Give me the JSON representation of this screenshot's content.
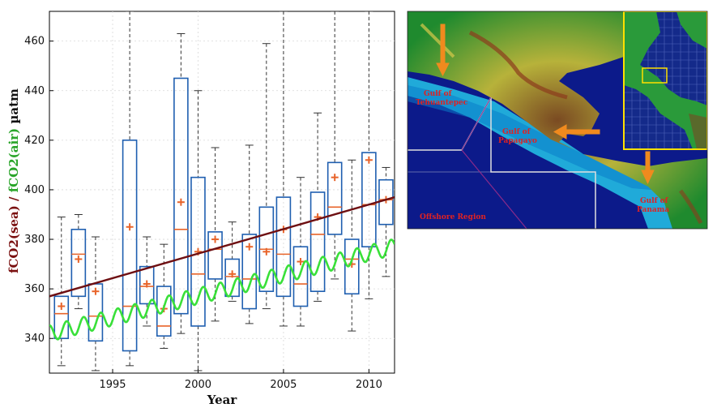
{
  "chart_data": {
    "type": "box",
    "xlabel": "Year",
    "ylabel": {
      "sea_part": "fCO2(sea)",
      "separator": "/",
      "air_part": "fCO2(air)",
      "unit": "µatm"
    },
    "xlim": [
      1991.3,
      2011.5
    ],
    "ylim": [
      326,
      472
    ],
    "xticks": [
      1995,
      2000,
      2005,
      2010
    ],
    "yticks": [
      340,
      360,
      380,
      400,
      420,
      440,
      460
    ],
    "grid": true,
    "box_color": "#1f5fb0",
    "median_color": "#e8642a",
    "mean_marker": "+",
    "boxes": [
      {
        "year": 1992,
        "low": 329,
        "q1": 340,
        "median": 350,
        "q3": 357,
        "high": 389,
        "mean": 353
      },
      {
        "year": 1993,
        "low": 352,
        "q1": 357,
        "median": 374,
        "q3": 384,
        "high": 390,
        "mean": 372
      },
      {
        "year": 1994,
        "low": 327,
        "q1": 339,
        "median": 349,
        "q3": 362,
        "high": 381,
        "mean": 359
      },
      {
        "year": 1996,
        "low": 329,
        "q1": 335,
        "median": 353,
        "q3": 420,
        "high": 472,
        "mean": 385
      },
      {
        "year": 1997,
        "low": 345,
        "q1": 354,
        "median": 361,
        "q3": 369,
        "high": 381,
        "mean": 362
      },
      {
        "year": 1998,
        "low": 336,
        "q1": 341,
        "median": 345,
        "q3": 361,
        "high": 378,
        "mean": 352
      },
      {
        "year": 1999,
        "low": 342,
        "q1": 350,
        "median": 384,
        "q3": 445,
        "high": 463,
        "mean": 395
      },
      {
        "year": 2000,
        "low": 327,
        "q1": 345,
        "median": 366,
        "q3": 405,
        "high": 440,
        "mean": 375
      },
      {
        "year": 2001,
        "low": 347,
        "q1": 364,
        "median": 376,
        "q3": 383,
        "high": 417,
        "mean": 380
      },
      {
        "year": 2002,
        "low": 355,
        "q1": 357,
        "median": 365,
        "q3": 372,
        "high": 387,
        "mean": 366
      },
      {
        "year": 2003,
        "low": 346,
        "q1": 352,
        "median": 364,
        "q3": 382,
        "high": 418,
        "mean": 377
      },
      {
        "year": 2004,
        "low": 352,
        "q1": 359,
        "median": 376,
        "q3": 393,
        "high": 459,
        "mean": 375
      },
      {
        "year": 2005,
        "low": 345,
        "q1": 357,
        "median": 374,
        "q3": 397,
        "high": 472,
        "mean": 384
      },
      {
        "year": 2006,
        "low": 345,
        "q1": 353,
        "median": 362,
        "q3": 377,
        "high": 405,
        "mean": 371
      },
      {
        "year": 2007,
        "low": 355,
        "q1": 359,
        "median": 382,
        "q3": 399,
        "high": 431,
        "mean": 389
      },
      {
        "year": 2008,
        "low": 364,
        "q1": 382,
        "median": 393,
        "q3": 411,
        "high": 472,
        "mean": 405
      },
      {
        "year": 2009,
        "low": 343,
        "q1": 358,
        "median": 372,
        "q3": 380,
        "high": 412,
        "mean": 370
      },
      {
        "year": 2010,
        "low": 356,
        "q1": 377,
        "median": 394,
        "q3": 415,
        "high": 472,
        "mean": 412
      },
      {
        "year": 2011,
        "low": 365,
        "q1": 386,
        "median": 396,
        "q3": 404,
        "high": 409,
        "mean": 396
      }
    ],
    "trend_line": {
      "color": "#6e0f12",
      "x": [
        1991.3,
        2011.5
      ],
      "y": [
        357,
        397
      ]
    },
    "air_co2": {
      "color": "#39e039",
      "x_start": 1991.3,
      "x_end": 2011.5,
      "y_start": 342,
      "y_end": 377,
      "seasonal_amplitude": 3.2
    }
  },
  "map": {
    "labels": {
      "tehuantepec": "Gulf of Tehuantepec",
      "papagayo": "Gulf of Papagayo",
      "offshore": "Offshore Region",
      "panama": "Gulf of Panama"
    },
    "colors": {
      "deep_ocean": "#0c1a8a",
      "coastal_shelf": "#24c4e6",
      "land_low": "#1f8a2e",
      "land_high": "#7a4a22",
      "arrow": "#f08a1e",
      "label": "#e02222",
      "inset_frame": "#ffe000"
    }
  }
}
